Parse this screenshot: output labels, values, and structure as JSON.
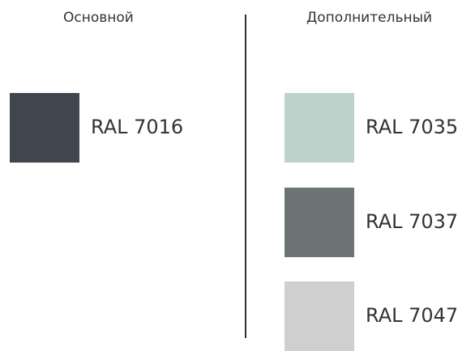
{
  "primary": {
    "title": "Основной",
    "swatches": [
      {
        "label": "RAL 7016",
        "color": "#3f464d"
      }
    ]
  },
  "secondary": {
    "title": "Дополнительный",
    "swatches": [
      {
        "label": "RAL 7035",
        "color": "#bcd3cc"
      },
      {
        "label": "RAL 7037",
        "color": "#6c7573"
      },
      {
        "label": "RAL 7047",
        "color": "#cfcfcf"
      }
    ]
  }
}
